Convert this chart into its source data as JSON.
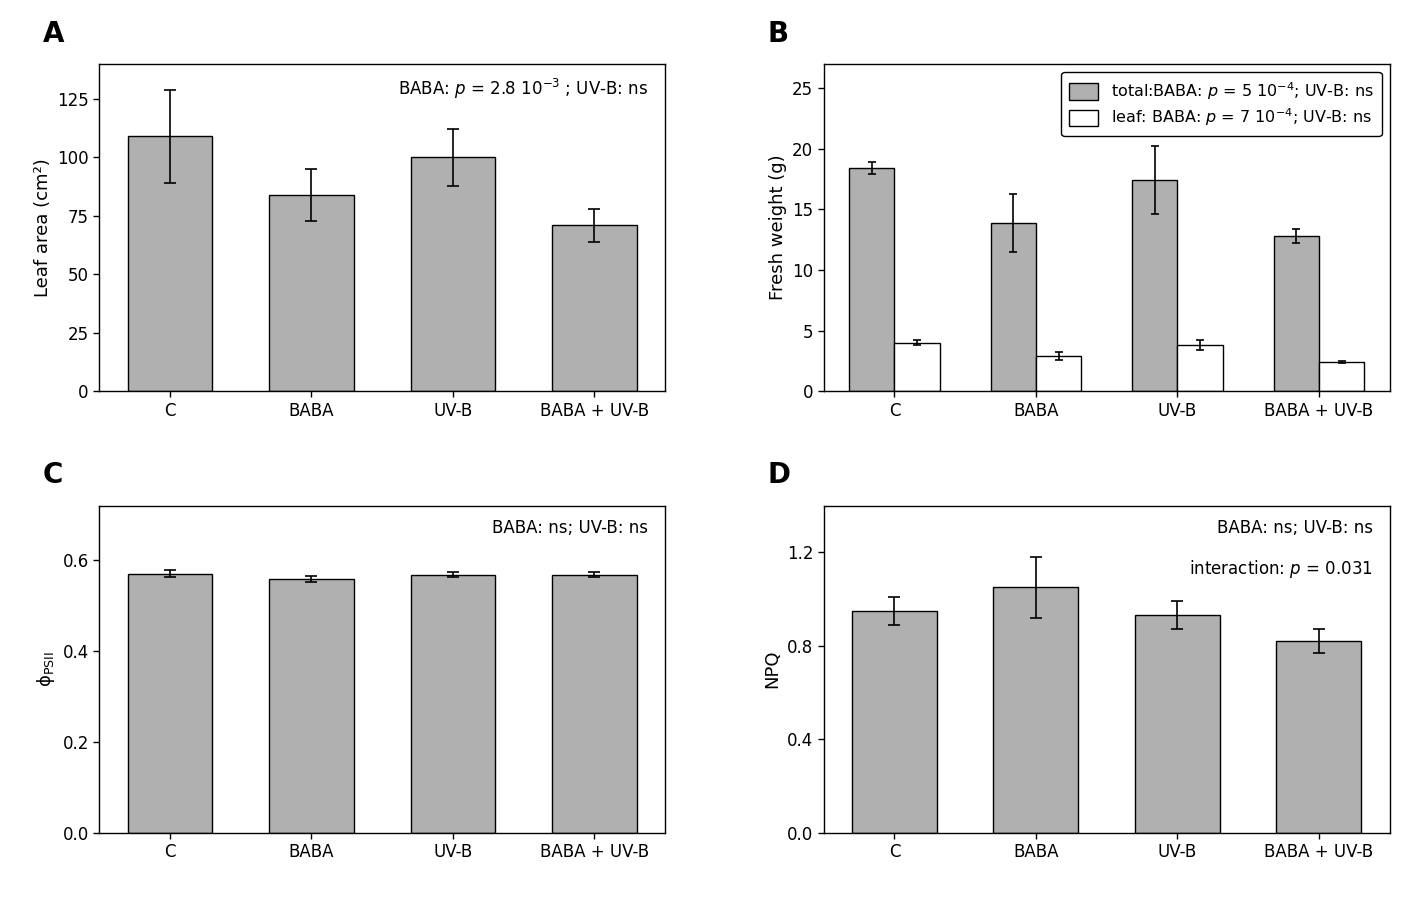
{
  "categories": [
    "C",
    "BABA",
    "UV-B",
    "BABA + UV-B"
  ],
  "A_values": [
    109,
    84,
    100,
    71
  ],
  "A_errors": [
    20,
    11,
    12,
    7
  ],
  "A_ylabel": "Leaf area (cm²)",
  "A_annotation": "BABA: $p$ = 2.8 10$^{-3}$ ; UV-B: ns",
  "A_ylim": [
    0,
    140
  ],
  "A_yticks": [
    0,
    25,
    50,
    75,
    100,
    125
  ],
  "B_total_values": [
    18.4,
    13.9,
    17.4,
    12.8
  ],
  "B_total_errors": [
    0.5,
    2.4,
    2.8,
    0.6
  ],
  "B_leaf_values": [
    4.0,
    2.9,
    3.8,
    2.4
  ],
  "B_leaf_errors": [
    0.2,
    0.3,
    0.4,
    0.1
  ],
  "B_ylabel": "Fresh weight (g)",
  "B_annotation_total": "total:BABA: $p$ = 5 10$^{-4}$; UV-B: ns",
  "B_annotation_leaf": "leaf: BABA: $p$ = 7 10$^{-4}$; UV-B: ns",
  "B_ylim": [
    0,
    27
  ],
  "B_yticks": [
    0,
    5,
    10,
    15,
    20,
    25
  ],
  "C_values": [
    0.57,
    0.558,
    0.568,
    0.568
  ],
  "C_errors": [
    0.008,
    0.007,
    0.006,
    0.005
  ],
  "C_ylabel": "ϕ$_\\mathregular{PSII}$",
  "C_annotation": "BABA: ns; UV-B: ns",
  "C_ylim": [
    0,
    0.72
  ],
  "C_yticks": [
    0.0,
    0.2,
    0.4,
    0.6
  ],
  "D_values": [
    0.95,
    1.05,
    0.93,
    0.82
  ],
  "D_errors": [
    0.06,
    0.13,
    0.06,
    0.05
  ],
  "D_ylabel": "NPQ",
  "D_annotation1": "BABA: ns; UV-B: ns",
  "D_annotation2": "interaction: $p$ = 0.031",
  "D_ylim": [
    0,
    1.4
  ],
  "D_yticks": [
    0.0,
    0.4,
    0.8,
    1.2
  ],
  "bar_color_gray": "#b0b0b0",
  "bar_color_white": "#ffffff",
  "bar_edgecolor": "#000000",
  "label_fontsize": 13,
  "tick_fontsize": 12,
  "annot_fontsize": 12,
  "panel_label_fontsize": 20
}
